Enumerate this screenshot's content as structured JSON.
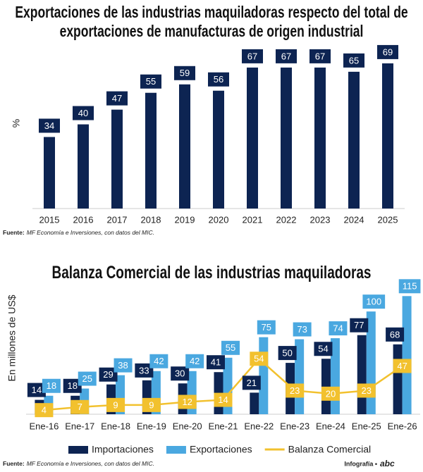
{
  "chart_data": [
    {
      "type": "bar",
      "title": "Exportaciones de las industrias maquiladoras respecto del total de exportaciones de manufacturas de origen industrial",
      "y_label": "%",
      "categories": [
        "2015",
        "2016",
        "2017",
        "2018",
        "2019",
        "2020",
        "2021",
        "2022",
        "2023",
        "2024",
        "2025"
      ],
      "values": [
        34,
        40,
        47,
        55,
        59,
        56,
        67,
        67,
        67,
        65,
        69
      ],
      "color": "#0d2452",
      "ylim": [
        0,
        75
      ],
      "source": {
        "label": "Fuente:",
        "text": "MF Economía e Inversiones, con datos del MIC."
      }
    },
    {
      "type": "bar",
      "title": "Balanza Comercial de las industrias maquiladoras",
      "y_label": "En millones de US$",
      "categories": [
        "Ene-16",
        "Ene-17",
        "Ene-18",
        "Ene-19",
        "Ene-20",
        "Ene-21",
        "Ene-22",
        "Ene-23",
        "Ene-24",
        "Ene-25",
        "Ene-26"
      ],
      "series": [
        {
          "name": "Importaciones",
          "color": "#0d2452",
          "type": "bar",
          "values": [
            14,
            18,
            29,
            33,
            30,
            41,
            21,
            50,
            54,
            77,
            68
          ]
        },
        {
          "name": "Exportaciones",
          "color": "#4aa8e0",
          "type": "bar",
          "values": [
            18,
            25,
            38,
            42,
            42,
            55,
            75,
            73,
            74,
            100,
            115
          ]
        },
        {
          "name": "Balanza Comercial",
          "color": "#f2c12e",
          "type": "line",
          "values": [
            4,
            7,
            9,
            9,
            12,
            14,
            54,
            23,
            20,
            23,
            47
          ]
        }
      ],
      "ylim": [
        0,
        120
      ],
      "legend": "bottom",
      "source": {
        "label": "Fuente:",
        "text": "MF Economía e Inversiones, con datos del MIC."
      }
    }
  ],
  "credit": "Infografía •",
  "brand": "abc"
}
